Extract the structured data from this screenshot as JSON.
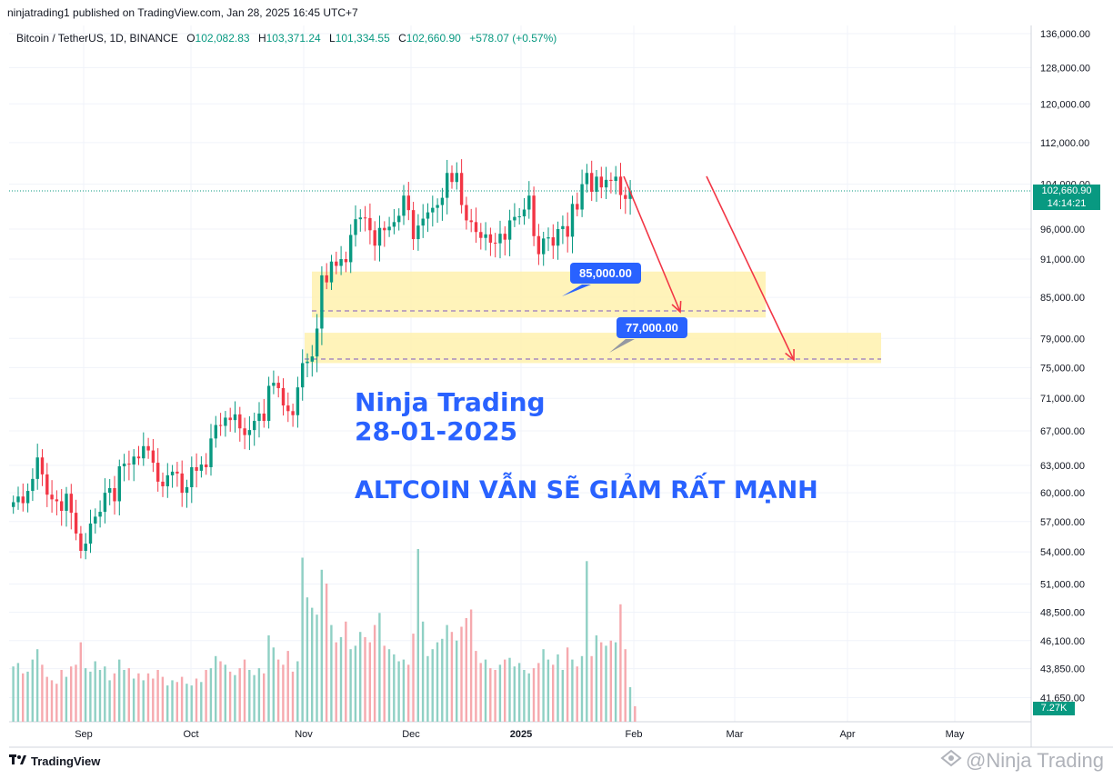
{
  "header": {
    "published": "ninjatrading1 published on TradingView.com, Jan 28, 2025 16:45 UTC+7",
    "symbol": "Bitcoin / TetherUS, 1D, BINANCE",
    "o_label": "O",
    "o": "102,082.83",
    "h_label": "H",
    "h": "103,371.24",
    "l_label": "L",
    "l": "101,334.55",
    "c_label": "C",
    "c": "102,660.90",
    "change": "+578.07 (+0.57%)"
  },
  "chart_data": {
    "type": "candlestick",
    "x_ticks": [
      "Sep",
      "Oct",
      "Nov",
      "Dec",
      "2025",
      "Feb",
      "Mar",
      "Apr",
      "May"
    ],
    "y_ticks": [
      "136,000.00",
      "128,000.00",
      "120,000.00",
      "112,000.00",
      "104,000.00",
      "96,000.00",
      "91,000.00",
      "85,000.00",
      "79,000.00",
      "75,000.00",
      "71,000.00",
      "67,000.00",
      "63,000.00",
      "60,000.00",
      "57,000.00",
      "54,000.00",
      "51,000.00",
      "48,500.00",
      "46,100.00",
      "43,850.00",
      "41,650.00"
    ],
    "y_tick_values": [
      136000,
      128000,
      120000,
      112000,
      104000,
      96000,
      91000,
      85000,
      79000,
      75000,
      71000,
      67000,
      63000,
      60000,
      57000,
      54000,
      51000,
      48500,
      46100,
      43850,
      41650
    ],
    "y_scale": "log",
    "last_price": "102,660.90",
    "countdown": "14:14:21",
    "volume_last": "7.27K",
    "closes": [
      59000,
      59600,
      58900,
      60200,
      61500,
      63900,
      62000,
      59800,
      59300,
      59100,
      58100,
      59900,
      57900,
      55800,
      54100,
      54800,
      56800,
      57500,
      58000,
      60000,
      60500,
      59100,
      62900,
      63200,
      63100,
      64000,
      63800,
      65200,
      64700,
      63300,
      61200,
      60700,
      61900,
      62300,
      62100,
      60000,
      60600,
      62800,
      62400,
      63100,
      62800,
      66100,
      67700,
      67600,
      68600,
      68300,
      69000,
      67300,
      66500,
      67100,
      68200,
      69100,
      68200,
      72600,
      73000,
      72300,
      70100,
      69400,
      68900,
      72400,
      75600,
      75800,
      76500,
      80400,
      88400,
      87300,
      90600,
      89900,
      91000,
      90500,
      95000,
      97700,
      98000,
      97900,
      95800,
      93200,
      96200,
      95800,
      96400,
      97200,
      98300,
      101900,
      99300,
      94300,
      96600,
      97800,
      98900,
      99700,
      100200,
      101500,
      106100,
      104400,
      106100,
      100200,
      97500,
      97200,
      95500,
      94500,
      95100,
      93700,
      93600,
      95200,
      94200,
      97500,
      98100,
      98200,
      99400,
      101900,
      94800,
      91800,
      94400,
      94600,
      93200,
      96000,
      96500,
      94700,
      100400,
      99400,
      104000,
      106100,
      102600,
      105400,
      103400,
      104800,
      104600,
      105400,
      102000,
      101300,
      102660
    ],
    "volume_samples": [
      0.32,
      0.34,
      0.28,
      0.29,
      0.36,
      0.42,
      0.33,
      0.26,
      0.24,
      0.22,
      0.3,
      0.26,
      0.32,
      0.33,
      0.46,
      0.31,
      0.29,
      0.35,
      0.3,
      0.32,
      0.24,
      0.28,
      0.36,
      0.3,
      0.31,
      0.25,
      0.28,
      0.24,
      0.28,
      0.25,
      0.3,
      0.26,
      0.21,
      0.24,
      0.23,
      0.26,
      0.22,
      0.21,
      0.25,
      0.23,
      0.3,
      0.31,
      0.38,
      0.35,
      0.33,
      0.29,
      0.27,
      0.31,
      0.36,
      0.3,
      0.27,
      0.31,
      0.28,
      0.5,
      0.43,
      0.36,
      0.33,
      0.41,
      0.29,
      0.35,
      0.95,
      0.72,
      0.66,
      0.62,
      0.88,
      0.8,
      0.56,
      0.46,
      0.49,
      0.58,
      0.42,
      0.44,
      0.52,
      0.49,
      0.46,
      0.56,
      0.63,
      0.44,
      0.42,
      0.39,
      0.35,
      0.36,
      0.33,
      0.51,
      1.0,
      0.58,
      0.38,
      0.42,
      0.46,
      0.48,
      0.56,
      0.52,
      0.47,
      0.55,
      0.6,
      0.65,
      0.41,
      0.34,
      0.36,
      0.31,
      0.3,
      0.33,
      0.36,
      0.37,
      0.32,
      0.34,
      0.3,
      0.28,
      0.31,
      0.34,
      0.42,
      0.36,
      0.33,
      0.39,
      0.3,
      0.43,
      0.36,
      0.32,
      0.38,
      0.93,
      0.38,
      0.5,
      0.46,
      0.44,
      0.47,
      0.46,
      0.68,
      0.42,
      0.2,
      0.09
    ]
  },
  "zones": [
    {
      "label": "85,000.00",
      "color": "#fff2b3"
    },
    {
      "label": "77,000.00",
      "color": "#fff2b3"
    }
  ],
  "annotation": {
    "line1": "Ninja Trading",
    "line2": "28-01-2025",
    "line3": "ALTCOIN VẪN SẼ GIẢM RẤT MẠNH"
  },
  "footer": {
    "logo": "TradingView",
    "watermark": "@Ninja Trading"
  },
  "colors": {
    "up": "#089981",
    "down": "#f23645",
    "accent": "#2962ff",
    "arrow": "#f23645"
  }
}
